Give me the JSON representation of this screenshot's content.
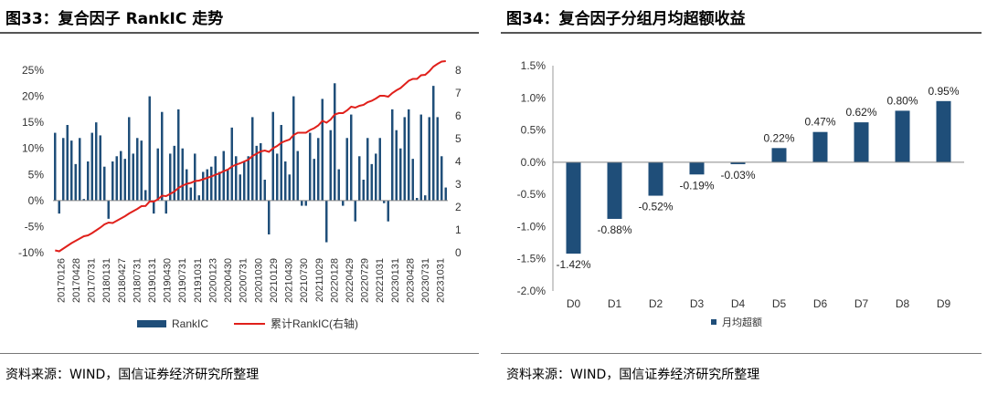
{
  "left": {
    "title": "图33：复合因子 RankIC 走势",
    "source": "资料来源：WIND，国信证券经济研究所整理"
  },
  "right": {
    "title": "图34：复合因子分组月均超额收益",
    "source": "资料来源：WIND，国信证券经济研究所整理"
  },
  "colors": {
    "bar": "#1f4e79",
    "line": "#e0201b"
  },
  "chart_data": [
    {
      "type": "bar",
      "combo": "bar+line (dual axis)",
      "x_tick_labels": [
        "20170126",
        "20170428",
        "20170731",
        "20180131",
        "20180427",
        "20180731",
        "20190131",
        "20190430",
        "20190731",
        "20191031",
        "20200123",
        "20200430",
        "20200731",
        "20201030",
        "20210129",
        "20210430",
        "20210730",
        "20211029",
        "20220128",
        "20220429",
        "20220729",
        "20221031",
        "20230131",
        "20230428",
        "20230731",
        "20231031"
      ],
      "y_left": {
        "ticks": [
          "-10%",
          "-5%",
          "0%",
          "5%",
          "10%",
          "15%",
          "20%",
          "25%"
        ],
        "min": -10,
        "max": 25,
        "unit": "%"
      },
      "y_right": {
        "ticks": [
          "0",
          "1",
          "2",
          "3",
          "4",
          "5",
          "6",
          "7",
          "8"
        ],
        "min": 0,
        "max": 8
      },
      "series": [
        {
          "name": "RankIC",
          "axis": "left",
          "kind": "bar",
          "values": [
            13,
            -2.5,
            12,
            14.5,
            11.5,
            7,
            12,
            0.3,
            7.5,
            13,
            15,
            12.5,
            6.5,
            -3.5,
            7.5,
            8.5,
            9.5,
            8,
            16,
            9,
            12,
            11.5,
            2,
            20,
            -2.5,
            10,
            17,
            -2.5,
            9,
            10.5,
            17.5,
            10,
            6,
            2.5,
            9,
            1,
            5.5,
            6,
            6.5,
            8.5,
            5.5,
            9.5,
            6,
            14,
            8.5,
            5,
            7.5,
            8.5,
            16,
            10.5,
            11,
            4,
            -6.5,
            17,
            9,
            14.5,
            7.5,
            5,
            20,
            9.5,
            -1,
            -1,
            13,
            8,
            12,
            19.5,
            -8,
            13.5,
            22.5,
            6,
            -1,
            12,
            16.5,
            -4,
            8.5,
            4,
            12,
            7,
            9,
            12,
            -0.5,
            -4,
            17.5,
            13.5,
            10,
            16,
            17.5,
            8,
            0.5,
            16.5,
            1,
            16,
            22,
            16,
            8.5,
            2.5
          ]
        },
        {
          "name": "累计RankIC(右轴)",
          "axis": "right",
          "kind": "line",
          "values": [
            0.1,
            0.06,
            0.18,
            0.3,
            0.42,
            0.52,
            0.62,
            0.72,
            0.76,
            0.86,
            0.98,
            1.1,
            1.24,
            1.32,
            1.3,
            1.4,
            1.5,
            1.6,
            1.72,
            1.82,
            1.92,
            2.04,
            2.05,
            2.25,
            2.24,
            2.34,
            2.5,
            2.48,
            2.58,
            2.68,
            2.84,
            2.94,
            3.02,
            3.06,
            3.14,
            3.16,
            3.22,
            3.28,
            3.34,
            3.42,
            3.48,
            3.58,
            3.64,
            3.78,
            3.86,
            3.92,
            4.0,
            4.08,
            4.24,
            4.34,
            4.44,
            4.48,
            4.42,
            4.58,
            4.68,
            4.82,
            4.9,
            4.96,
            5.16,
            5.26,
            5.26,
            5.26,
            5.38,
            5.46,
            5.58,
            5.78,
            5.7,
            5.84,
            6.06,
            6.12,
            6.12,
            6.24,
            6.4,
            6.36,
            6.44,
            6.48,
            6.6,
            6.66,
            6.76,
            6.88,
            6.88,
            6.84,
            7.0,
            7.12,
            7.22,
            7.38,
            7.54,
            7.62,
            7.62,
            7.78,
            7.8,
            7.96,
            8.16,
            8.28,
            8.38,
            8.4
          ]
        }
      ]
    },
    {
      "type": "bar",
      "categories": [
        "D0",
        "D1",
        "D2",
        "D3",
        "D4",
        "D5",
        "D6",
        "D7",
        "D8",
        "D9"
      ],
      "series": [
        {
          "name": "月均超额",
          "values": [
            -1.42,
            -0.88,
            -0.52,
            -0.19,
            -0.03,
            0.22,
            0.47,
            0.62,
            0.8,
            0.95
          ]
        }
      ],
      "data_labels": [
        "-1.42%",
        "-0.88%",
        "-0.52%",
        "-0.19%",
        "-0.03%",
        "0.22%",
        "0.47%",
        "0.62%",
        "0.80%",
        "0.95%"
      ],
      "y_tick_labels": [
        "-2.0%",
        "-1.5%",
        "-1.0%",
        "-0.5%",
        "0.0%",
        "0.5%",
        "1.0%",
        "1.5%"
      ],
      "ylim": [
        -2.0,
        1.5
      ]
    }
  ]
}
